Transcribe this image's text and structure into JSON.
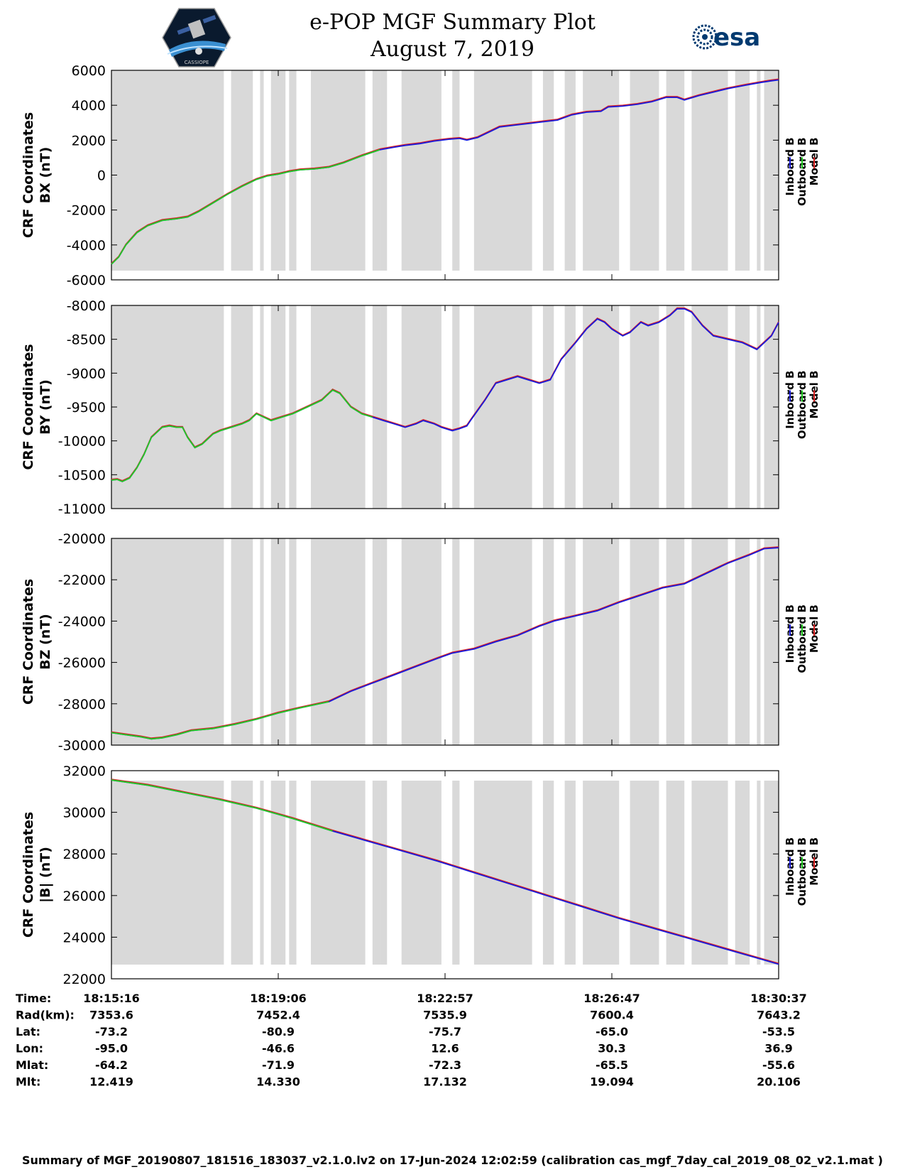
{
  "header": {
    "title": "e-POP MGF Summary Plot",
    "date": "August 7, 2019",
    "left_logo": "CASSIOPE",
    "right_logo": "esa"
  },
  "colors": {
    "inboard": "#1a1adb",
    "outboard": "#22cc22",
    "model": "#dd2222",
    "gap": "#d9d9d9"
  },
  "legend": [
    "Inboard B",
    "Outboard B",
    "Model B"
  ],
  "chart_data": [
    {
      "type": "line",
      "ylabel": [
        "CRF Coordinates",
        "BX (nT)"
      ],
      "ylim": [
        -6000,
        6000
      ],
      "yticks": [
        -6000,
        -4000,
        -2000,
        0,
        2000,
        4000,
        6000
      ],
      "xlim": [
        0,
        920
      ],
      "outboard_until": 370,
      "series_points": [
        [
          0,
          -5100
        ],
        [
          10,
          -4700
        ],
        [
          20,
          -4000
        ],
        [
          35,
          -3300
        ],
        [
          50,
          -2900
        ],
        [
          70,
          -2600
        ],
        [
          90,
          -2500
        ],
        [
          105,
          -2400
        ],
        [
          120,
          -2100
        ],
        [
          140,
          -1600
        ],
        [
          160,
          -1100
        ],
        [
          180,
          -650
        ],
        [
          200,
          -250
        ],
        [
          215,
          -50
        ],
        [
          230,
          50
        ],
        [
          245,
          200
        ],
        [
          260,
          300
        ],
        [
          280,
          350
        ],
        [
          300,
          450
        ],
        [
          320,
          700
        ],
        [
          345,
          1100
        ],
        [
          370,
          1450
        ],
        [
          390,
          1600
        ],
        [
          405,
          1700
        ],
        [
          425,
          1800
        ],
        [
          445,
          1950
        ],
        [
          465,
          2050
        ],
        [
          480,
          2100
        ],
        [
          490,
          2000
        ],
        [
          505,
          2150
        ],
        [
          520,
          2450
        ],
        [
          535,
          2750
        ],
        [
          555,
          2850
        ],
        [
          575,
          2950
        ],
        [
          595,
          3050
        ],
        [
          615,
          3150
        ],
        [
          635,
          3450
        ],
        [
          655,
          3600
        ],
        [
          675,
          3650
        ],
        [
          685,
          3900
        ],
        [
          705,
          3950
        ],
        [
          725,
          4050
        ],
        [
          745,
          4200
        ],
        [
          765,
          4450
        ],
        [
          780,
          4450
        ],
        [
          790,
          4300
        ],
        [
          810,
          4550
        ],
        [
          830,
          4750
        ],
        [
          850,
          4950
        ],
        [
          875,
          5150
        ],
        [
          895,
          5300
        ],
        [
          910,
          5400
        ],
        [
          920,
          5450
        ]
      ]
    },
    {
      "type": "line",
      "ylabel": [
        "CRF Coordinates",
        "BY (nT)"
      ],
      "ylim": [
        -11000,
        -8000
      ],
      "yticks": [
        -11000,
        -10500,
        -10000,
        -9500,
        -9000,
        -8500,
        -8000
      ],
      "xlim": [
        0,
        920
      ],
      "outboard_until": 370,
      "series_points": [
        [
          0,
          -10580
        ],
        [
          8,
          -10570
        ],
        [
          15,
          -10600
        ],
        [
          25,
          -10550
        ],
        [
          35,
          -10400
        ],
        [
          45,
          -10200
        ],
        [
          55,
          -9950
        ],
        [
          70,
          -9800
        ],
        [
          80,
          -9780
        ],
        [
          90,
          -9800
        ],
        [
          98,
          -9800
        ],
        [
          105,
          -9950
        ],
        [
          115,
          -10100
        ],
        [
          125,
          -10050
        ],
        [
          130,
          -10000
        ],
        [
          140,
          -9900
        ],
        [
          150,
          -9850
        ],
        [
          165,
          -9800
        ],
        [
          180,
          -9750
        ],
        [
          190,
          -9700
        ],
        [
          200,
          -9600
        ],
        [
          210,
          -9650
        ],
        [
          220,
          -9700
        ],
        [
          235,
          -9650
        ],
        [
          250,
          -9600
        ],
        [
          270,
          -9500
        ],
        [
          290,
          -9400
        ],
        [
          300,
          -9300
        ],
        [
          305,
          -9250
        ],
        [
          315,
          -9300
        ],
        [
          330,
          -9500
        ],
        [
          345,
          -9600
        ],
        [
          360,
          -9650
        ],
        [
          375,
          -9700
        ],
        [
          390,
          -9750
        ],
        [
          405,
          -9800
        ],
        [
          420,
          -9750
        ],
        [
          430,
          -9700
        ],
        [
          445,
          -9750
        ],
        [
          455,
          -9800
        ],
        [
          470,
          -9850
        ],
        [
          480,
          -9820
        ],
        [
          490,
          -9780
        ],
        [
          495,
          -9700
        ],
        [
          505,
          -9550
        ],
        [
          515,
          -9400
        ],
        [
          530,
          -9150
        ],
        [
          545,
          -9100
        ],
        [
          560,
          -9050
        ],
        [
          575,
          -9100
        ],
        [
          590,
          -9150
        ],
        [
          605,
          -9100
        ],
        [
          620,
          -8800
        ],
        [
          640,
          -8550
        ],
        [
          655,
          -8350
        ],
        [
          670,
          -8200
        ],
        [
          680,
          -8250
        ],
        [
          690,
          -8350
        ],
        [
          705,
          -8450
        ],
        [
          715,
          -8400
        ],
        [
          730,
          -8250
        ],
        [
          740,
          -8300
        ],
        [
          755,
          -8250
        ],
        [
          770,
          -8150
        ],
        [
          780,
          -8050
        ],
        [
          790,
          -8050
        ],
        [
          800,
          -8100
        ],
        [
          815,
          -8300
        ],
        [
          830,
          -8450
        ],
        [
          850,
          -8500
        ],
        [
          870,
          -8550
        ],
        [
          890,
          -8650
        ],
        [
          910,
          -8450
        ],
        [
          920,
          -8250
        ]
      ]
    },
    {
      "type": "line",
      "ylabel": [
        "CRF Coordinates",
        "BZ (nT)"
      ],
      "ylim": [
        -30000,
        -20000
      ],
      "yticks": [
        -30000,
        -28000,
        -26000,
        -24000,
        -22000,
        -20000
      ],
      "xlim": [
        0,
        920
      ],
      "outboard_until": 300,
      "series_points": [
        [
          0,
          -29400
        ],
        [
          20,
          -29500
        ],
        [
          40,
          -29600
        ],
        [
          55,
          -29700
        ],
        [
          70,
          -29650
        ],
        [
          90,
          -29500
        ],
        [
          110,
          -29300
        ],
        [
          140,
          -29200
        ],
        [
          170,
          -29000
        ],
        [
          200,
          -28750
        ],
        [
          230,
          -28450
        ],
        [
          260,
          -28200
        ],
        [
          280,
          -28050
        ],
        [
          300,
          -27900
        ],
        [
          330,
          -27400
        ],
        [
          360,
          -27000
        ],
        [
          390,
          -26600
        ],
        [
          420,
          -26200
        ],
        [
          450,
          -25800
        ],
        [
          470,
          -25550
        ],
        [
          500,
          -25350
        ],
        [
          530,
          -25000
        ],
        [
          560,
          -24700
        ],
        [
          590,
          -24250
        ],
        [
          610,
          -24000
        ],
        [
          640,
          -23750
        ],
        [
          670,
          -23500
        ],
        [
          700,
          -23100
        ],
        [
          730,
          -22750
        ],
        [
          760,
          -22400
        ],
        [
          790,
          -22200
        ],
        [
          820,
          -21700
        ],
        [
          850,
          -21200
        ],
        [
          880,
          -20800
        ],
        [
          900,
          -20500
        ],
        [
          920,
          -20450
        ]
      ]
    },
    {
      "type": "line",
      "ylabel": [
        "CRF Coordinates",
        "|B| (nT)"
      ],
      "ylim": [
        22000,
        32000
      ],
      "yticks": [
        22000,
        24000,
        26000,
        28000,
        30000,
        32000
      ],
      "xlim": [
        0,
        920
      ],
      "outboard_until": 305,
      "series_points": [
        [
          0,
          31550
        ],
        [
          50,
          31300
        ],
        [
          100,
          30950
        ],
        [
          150,
          30600
        ],
        [
          200,
          30200
        ],
        [
          250,
          29700
        ],
        [
          305,
          29100
        ],
        [
          350,
          28650
        ],
        [
          400,
          28150
        ],
        [
          450,
          27650
        ],
        [
          500,
          27100
        ],
        [
          550,
          26550
        ],
        [
          600,
          26000
        ],
        [
          650,
          25450
        ],
        [
          700,
          24900
        ],
        [
          750,
          24400
        ],
        [
          800,
          23900
        ],
        [
          850,
          23400
        ],
        [
          900,
          22900
        ],
        [
          920,
          22700
        ]
      ]
    }
  ],
  "gap_bands": [
    [
      0,
      155
    ],
    [
      165,
      195
    ],
    [
      205,
      210
    ],
    [
      220,
      240
    ],
    [
      245,
      255
    ],
    [
      275,
      350
    ],
    [
      360,
      370
    ],
    [
      370,
      380
    ],
    [
      400,
      455
    ],
    [
      470,
      480
    ],
    [
      500,
      580
    ],
    [
      595,
      610
    ],
    [
      625,
      640
    ],
    [
      650,
      700
    ],
    [
      715,
      755
    ],
    [
      765,
      790
    ],
    [
      800,
      850
    ],
    [
      860,
      880
    ],
    [
      890,
      895
    ],
    [
      900,
      920
    ]
  ],
  "xaxis": {
    "tick_positions": [
      230,
      460,
      690,
      920
    ],
    "table_positions": [
      0,
      230,
      460,
      690,
      920
    ],
    "rows": [
      {
        "label": "Time:",
        "values": [
          "18:15:16",
          "18:19:06",
          "18:22:57",
          "18:26:47",
          "18:30:37"
        ]
      },
      {
        "label": "Rad(km):",
        "values": [
          "7353.6",
          "7452.4",
          "7535.9",
          "7600.4",
          "7643.2"
        ]
      },
      {
        "label": "Lat:",
        "values": [
          "-73.2",
          "-80.9",
          "-75.7",
          "-65.0",
          "-53.5"
        ]
      },
      {
        "label": "Lon:",
        "values": [
          "-95.0",
          "-46.6",
          "12.6",
          "30.3",
          "36.9"
        ]
      },
      {
        "label": "Mlat:",
        "values": [
          "-64.2",
          "-71.9",
          "-72.3",
          "-65.5",
          "-55.6"
        ]
      },
      {
        "label": "Mlt:",
        "values": [
          "12.419",
          "14.330",
          "17.132",
          "19.094",
          "20.106"
        ]
      }
    ]
  },
  "footer": "Summary of MGF_20190807_181516_183037_v2.1.0.lv2 on 17-Jun-2024 12:02:59 (calibration cas_mgf_7day_cal_2019_08_02_v2.1.mat )"
}
